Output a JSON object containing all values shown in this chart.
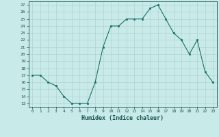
{
  "x": [
    0,
    1,
    2,
    3,
    4,
    5,
    6,
    7,
    8,
    9,
    10,
    11,
    12,
    13,
    14,
    15,
    16,
    17,
    18,
    19,
    20,
    21,
    22,
    23
  ],
  "y": [
    17,
    17,
    16,
    15.5,
    14,
    13,
    13,
    13,
    16,
    21,
    24,
    24,
    25,
    25,
    25,
    26.5,
    27,
    25,
    23,
    22,
    20,
    22,
    17.5,
    16
  ],
  "xlabel": "Humidex (Indice chaleur)",
  "ylabel": "",
  "ylim_min": 12.5,
  "ylim_max": 27.5,
  "xlim_min": -0.5,
  "xlim_max": 23.5,
  "yticks": [
    13,
    14,
    15,
    16,
    17,
    18,
    19,
    20,
    21,
    22,
    23,
    24,
    25,
    26,
    27
  ],
  "xticks": [
    0,
    1,
    2,
    3,
    4,
    5,
    6,
    7,
    8,
    9,
    10,
    11,
    12,
    13,
    14,
    15,
    16,
    17,
    18,
    19,
    20,
    21,
    22,
    23
  ],
  "line_color": "#1a7068",
  "marker_color": "#1a7068",
  "bg_color": "#c8eae8",
  "grid_color": "#b0d4d0",
  "label_color": "#1a5050",
  "tick_color": "#1a5050"
}
